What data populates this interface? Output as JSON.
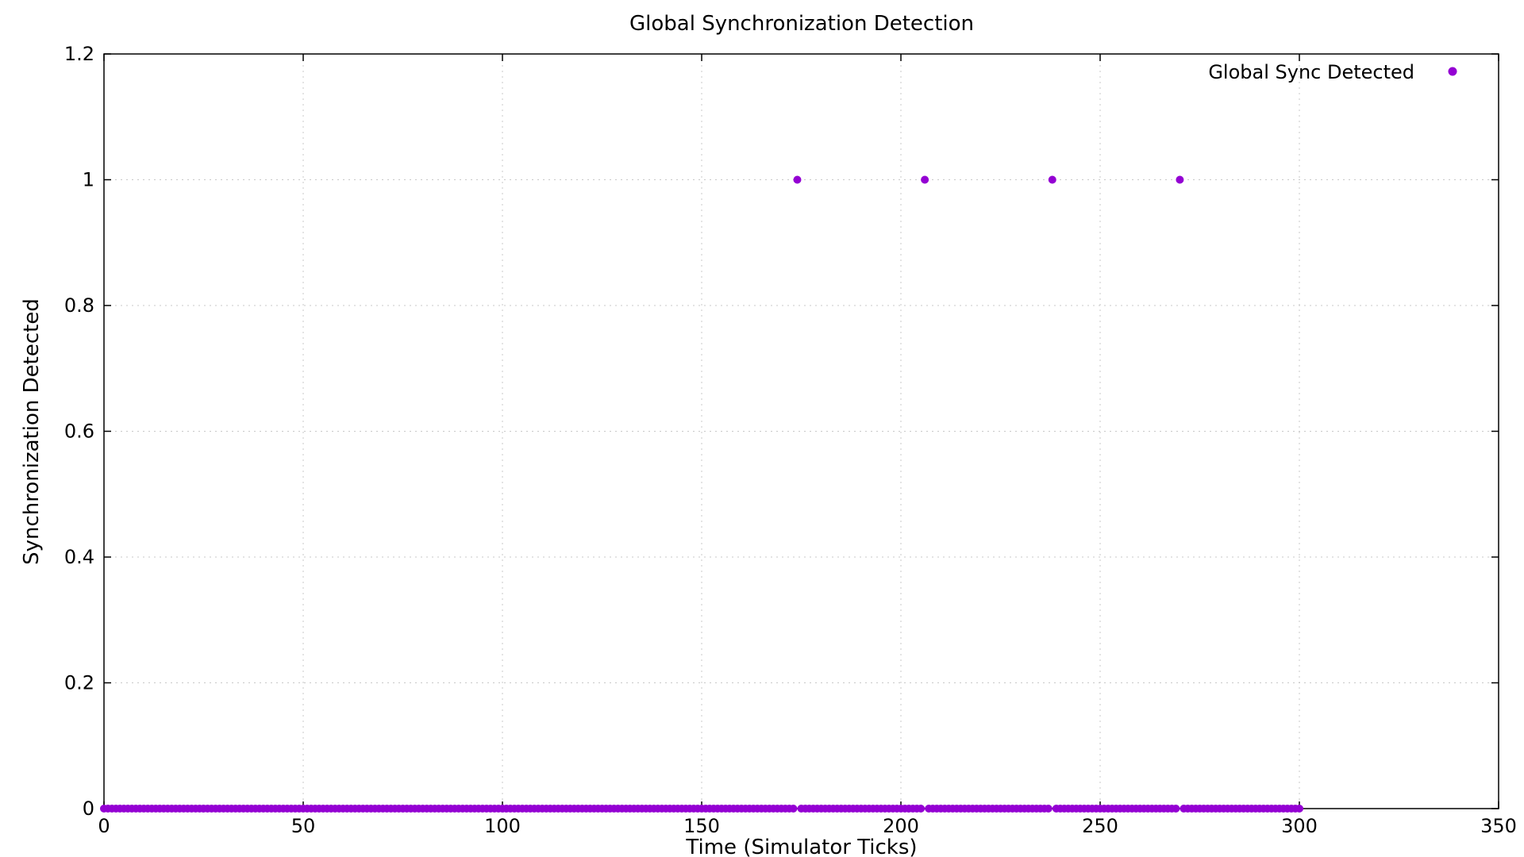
{
  "chart_data": {
    "type": "scatter",
    "title": "Global Synchronization Detection",
    "xlabel": "Time (Simulator Ticks)",
    "ylabel": "Synchronization Detected",
    "xlim": [
      0,
      350
    ],
    "ylim": [
      0,
      1.2
    ],
    "x_ticks": [
      0,
      50,
      100,
      150,
      200,
      250,
      300,
      350
    ],
    "y_ticks": [
      0,
      0.2,
      0.4,
      0.6,
      0.8,
      1,
      1.2
    ],
    "x_tick_labels": [
      "0",
      "50",
      "100",
      "150",
      "200",
      "250",
      "300",
      "350"
    ],
    "y_tick_labels": [
      "0",
      "0.2",
      "0.4",
      "0.6",
      "0.8",
      "1",
      "1.2"
    ],
    "grid": true,
    "legend_position": "top-right",
    "series": [
      {
        "name": "Global Sync Detected",
        "color": "#9400d3",
        "x_range": [
          0,
          300
        ],
        "x_step": 1,
        "default_y": 0,
        "ones_at_x": [
          174,
          206,
          238,
          270
        ]
      }
    ]
  }
}
